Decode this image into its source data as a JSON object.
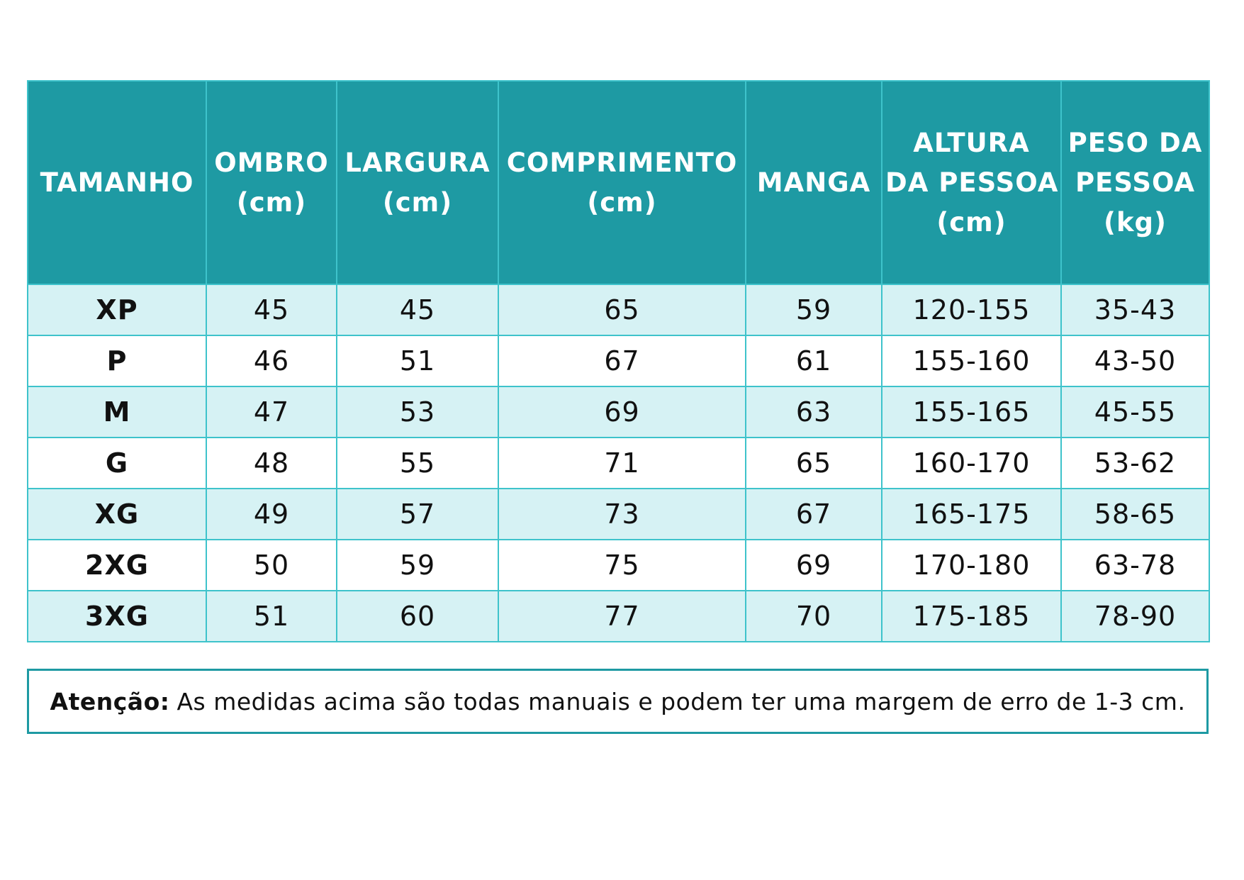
{
  "table": {
    "headers": [
      {
        "lines": [
          "TAMANHO"
        ]
      },
      {
        "lines": [
          "OMBRO",
          "(cm)"
        ]
      },
      {
        "lines": [
          "LARGURA",
          "(cm)"
        ]
      },
      {
        "lines": [
          "COMPRIMENTO",
          "(cm)"
        ]
      },
      {
        "lines": [
          "MANGA"
        ]
      },
      {
        "lines": [
          "ALTURA",
          "DA PESSOA",
          "(cm)"
        ]
      },
      {
        "lines": [
          "PESO DA",
          "PESSOA",
          "(kg)"
        ]
      }
    ],
    "rows": [
      [
        "XP",
        "45",
        "45",
        "65",
        "59",
        "120-155",
        "35-43"
      ],
      [
        "P",
        "46",
        "51",
        "67",
        "61",
        "155-160",
        "43-50"
      ],
      [
        "M",
        "47",
        "53",
        "69",
        "63",
        "155-165",
        "45-55"
      ],
      [
        "G",
        "48",
        "55",
        "71",
        "65",
        "160-170",
        "53-62"
      ],
      [
        "XG",
        "49",
        "57",
        "73",
        "67",
        "165-175",
        "58-65"
      ],
      [
        "2XG",
        "50",
        "59",
        "75",
        "69",
        "170-180",
        "63-78"
      ],
      [
        "3XG",
        "51",
        "60",
        "77",
        "70",
        "175-185",
        "78-90"
      ]
    ]
  },
  "note": {
    "label": "Atenção:",
    "text": "As medidas acima são todas manuais e podem ter uma margem de erro de 1-3 cm."
  },
  "colors": {
    "header_bg": "#1e9aa3",
    "border": "#3ec3cb",
    "row_alt_bg": "#d6f2f4"
  }
}
